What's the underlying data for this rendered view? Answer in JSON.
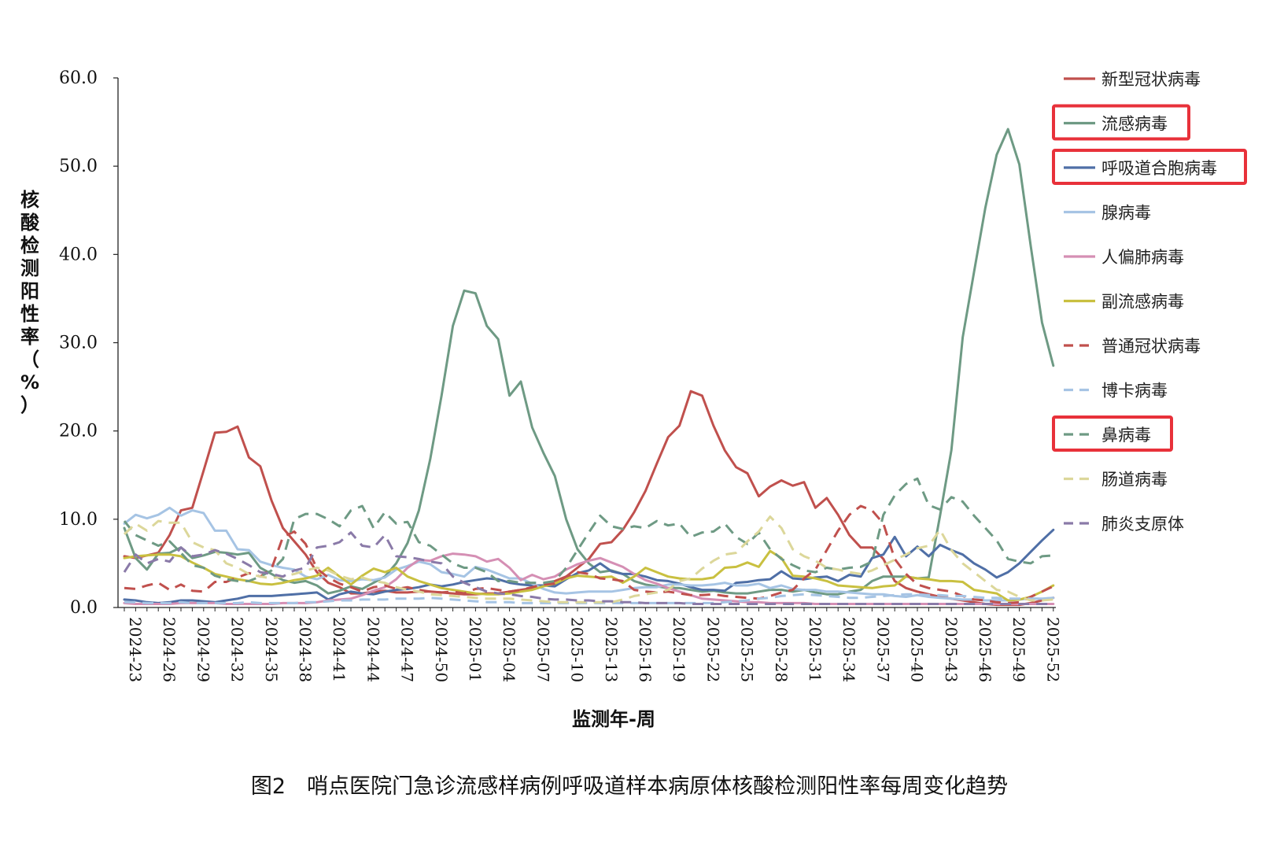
{
  "figure": {
    "caption": "图2　哨点医院门急诊流感样病例呼吸道样本病原体核酸检测阳性率每周变化趋势"
  },
  "chart_data": {
    "type": "line",
    "xlabel": "监测年-周",
    "ylabel": "核酸检测阳性率（%）",
    "ylim": [
      0,
      60
    ],
    "yticks": [
      "0.0",
      "10.0",
      "20.0",
      "30.0",
      "40.0",
      "50.0",
      "60.0"
    ],
    "grid": false,
    "legend_position": "right",
    "x_tick_labels": [
      "2024-23",
      "2024-26",
      "2024-29",
      "2024-32",
      "2024-35",
      "2024-38",
      "2024-41",
      "2024-44",
      "2024-47",
      "2024-50",
      "2025-01",
      "2025-04",
      "2025-07",
      "2025-10",
      "2025-13",
      "2025-16",
      "2025-19",
      "2025-22",
      "2025-25",
      "2025-28",
      "2025-31",
      "2025-34",
      "2025-37",
      "2025-40",
      "2025-43",
      "2025-46",
      "2025-49",
      "2025-52"
    ],
    "x": [
      "2024-23",
      "2024-24",
      "2024-25",
      "2024-26",
      "2024-27",
      "2024-28",
      "2024-29",
      "2024-30",
      "2024-31",
      "2024-32",
      "2024-33",
      "2024-34",
      "2024-35",
      "2024-36",
      "2024-37",
      "2024-38",
      "2024-39",
      "2024-40",
      "2024-41",
      "2024-42",
      "2024-43",
      "2024-44",
      "2024-45",
      "2024-46",
      "2024-47",
      "2024-48",
      "2024-49",
      "2024-50",
      "2024-51",
      "2024-52",
      "2025-01",
      "2025-02",
      "2025-03",
      "2025-04",
      "2025-05",
      "2025-06",
      "2025-07",
      "2025-08",
      "2025-09",
      "2025-10",
      "2025-11",
      "2025-12",
      "2025-13",
      "2025-14",
      "2025-15",
      "2025-16",
      "2025-17",
      "2025-18",
      "2025-19",
      "2025-20",
      "2025-21",
      "2025-22",
      "2025-23",
      "2025-24",
      "2025-25",
      "2025-26",
      "2025-27",
      "2025-28",
      "2025-29",
      "2025-30",
      "2025-31",
      "2025-32",
      "2025-33",
      "2025-34",
      "2025-35",
      "2025-36",
      "2025-37",
      "2025-38",
      "2025-39",
      "2025-40",
      "2025-41",
      "2025-42",
      "2025-43",
      "2025-44",
      "2025-45",
      "2025-46",
      "2025-47",
      "2025-48",
      "2025-49",
      "2025-50",
      "2025-51",
      "2025-52",
      "2025-53"
    ],
    "series": [
      {
        "name": "新型冠状病毒",
        "color": "#c0504d",
        "dash": "solid",
        "values": [
          5.8,
          5.6,
          5.9,
          6.2,
          8.2,
          11.0,
          11.3,
          15.5,
          19.8,
          19.9,
          20.5,
          17.0,
          16.0,
          12.1,
          9.0,
          7.5,
          6.0,
          4.0,
          2.8,
          2.3,
          1.6,
          1.6,
          1.8,
          1.9,
          1.7,
          1.7,
          1.8,
          1.8,
          1.7,
          1.6,
          1.5,
          1.5,
          1.6,
          1.6,
          1.8,
          2.0,
          2.2,
          2.5,
          3.0,
          3.5,
          4.5,
          5.5,
          7.2,
          7.4,
          8.8,
          10.8,
          13.2,
          16.3,
          19.3,
          20.6,
          24.5,
          24.0,
          20.6,
          17.8,
          15.9,
          15.2,
          12.6,
          13.7,
          14.4,
          13.8,
          14.2,
          11.3,
          12.4,
          10.5,
          8.2,
          6.8,
          6.8,
          5.5,
          3.0,
          2.2,
          1.8,
          1.5,
          1.2,
          1.0,
          0.8,
          0.6,
          0.4,
          0.3,
          0.3,
          0.3,
          0.5,
          0.8,
          1.1
        ]
      },
      {
        "name": "流感病毒",
        "color": "#6e9a84",
        "dash": "solid",
        "values": [
          9.0,
          5.6,
          4.3,
          6.1,
          6.2,
          6.8,
          5.6,
          5.9,
          6.3,
          6.2,
          6.0,
          6.2,
          4.5,
          3.8,
          3.1,
          2.8,
          3.0,
          2.5,
          1.6,
          1.9,
          2.4,
          2.1,
          2.8,
          3.5,
          5.0,
          7.3,
          11.0,
          16.8,
          24.0,
          31.9,
          35.9,
          35.6,
          31.9,
          30.4,
          24.0,
          25.6,
          20.4,
          17.5,
          14.9,
          10.0,
          6.6,
          5.0,
          4.0,
          4.2,
          3.8,
          3.0,
          2.6,
          2.4,
          2.2,
          2.2,
          2.0,
          1.8,
          1.9,
          1.7,
          1.6,
          1.6,
          1.8,
          2.0,
          2.0,
          1.8,
          2.0,
          1.7,
          1.5,
          1.5,
          1.8,
          2.0,
          3.0,
          3.5,
          3.5,
          3.5,
          3.3,
          3.4,
          10.4,
          17.8,
          30.6,
          38.0,
          45.3,
          51.3,
          54.2,
          50.2,
          41.0,
          32.3,
          27.4
        ]
      },
      {
        "name": "呼吸道合胞病毒",
        "color": "#4f6fa6",
        "dash": "solid",
        "values": [
          0.9,
          0.8,
          0.6,
          0.5,
          0.6,
          0.8,
          0.8,
          0.7,
          0.6,
          0.8,
          1.0,
          1.3,
          1.3,
          1.3,
          1.4,
          1.5,
          1.6,
          1.7,
          0.9,
          1.5,
          1.8,
          1.6,
          1.5,
          1.8,
          2.0,
          2.1,
          2.3,
          2.6,
          2.4,
          2.6,
          2.9,
          3.1,
          3.3,
          3.2,
          2.8,
          2.6,
          2.5,
          2.5,
          2.4,
          3.2,
          3.9,
          4.2,
          5.0,
          4.1,
          3.8,
          3.8,
          3.5,
          3.1,
          3.0,
          2.7,
          2.3,
          2.0,
          2.0,
          1.9,
          2.8,
          2.9,
          3.1,
          3.2,
          4.1,
          3.3,
          3.2,
          3.4,
          3.5,
          3.0,
          3.7,
          3.5,
          5.6,
          6.0,
          8.0,
          5.8,
          6.9,
          5.8,
          7.1,
          6.5,
          6.0,
          5.0,
          4.3,
          3.4,
          4.0,
          5.0,
          6.3,
          7.6,
          8.8
        ]
      },
      {
        "name": "腺病毒",
        "color": "#a6c4e4",
        "dash": "solid",
        "values": [
          9.5,
          10.5,
          10.1,
          10.5,
          11.3,
          10.4,
          11.0,
          10.7,
          8.7,
          8.7,
          6.6,
          6.5,
          5.2,
          4.8,
          4.5,
          4.3,
          3.5,
          3.2,
          3.7,
          3.1,
          3.0,
          3.2,
          3.1,
          3.4,
          4.3,
          4.7,
          5.2,
          4.9,
          4.0,
          3.8,
          3.5,
          4.6,
          4.3,
          3.8,
          3.3,
          3.3,
          2.7,
          2.1,
          1.7,
          1.6,
          1.7,
          1.8,
          1.8,
          1.8,
          2.0,
          2.2,
          2.3,
          2.3,
          2.6,
          2.6,
          2.5,
          2.5,
          2.6,
          2.8,
          2.5,
          2.5,
          2.7,
          2.2,
          2.5,
          2.1,
          2.0,
          2.0,
          1.8,
          1.8,
          1.7,
          1.6,
          1.5,
          1.5,
          1.3,
          1.2,
          1.4,
          1.2,
          1.1,
          1.0,
          0.9,
          0.9,
          0.8,
          0.8,
          0.8,
          0.9,
          1.0,
          1.0,
          1.1
        ]
      },
      {
        "name": "人偏肺病毒",
        "color": "#d58fb4",
        "dash": "solid",
        "values": [
          0.5,
          0.4,
          0.4,
          0.4,
          0.4,
          0.5,
          0.5,
          0.5,
          0.5,
          0.4,
          0.4,
          0.4,
          0.4,
          0.4,
          0.5,
          0.5,
          0.5,
          0.6,
          0.8,
          0.9,
          1.0,
          1.4,
          1.9,
          2.3,
          3.2,
          4.5,
          5.4,
          5.3,
          5.8,
          6.1,
          6.0,
          5.8,
          5.2,
          5.5,
          4.5,
          3.1,
          3.7,
          3.2,
          3.5,
          4.3,
          4.9,
          5.3,
          5.6,
          5.1,
          4.6,
          3.8,
          3.1,
          2.7,
          2.2,
          1.8,
          1.4,
          1.0,
          0.9,
          0.8,
          0.7,
          0.6,
          0.6,
          0.5,
          0.5,
          0.5,
          0.5,
          0.4,
          0.4,
          0.4,
          0.4,
          0.4,
          0.4,
          0.4,
          0.4,
          0.4,
          0.4,
          0.4,
          0.4,
          0.4,
          0.4,
          0.4,
          0.4,
          0.4,
          0.4,
          0.4,
          0.4,
          0.4,
          0.4
        ]
      },
      {
        "name": "副流感病毒",
        "color": "#c9c040",
        "dash": "solid",
        "values": [
          5.6,
          5.8,
          5.9,
          6.0,
          6.0,
          5.8,
          5.1,
          4.5,
          3.8,
          3.5,
          3.2,
          3.0,
          2.7,
          2.6,
          2.8,
          3.1,
          3.3,
          3.6,
          4.5,
          3.5,
          2.6,
          3.6,
          4.4,
          4.0,
          4.5,
          3.5,
          3.0,
          2.6,
          2.2,
          2.0,
          1.8,
          1.6,
          1.5,
          1.5,
          1.6,
          1.8,
          2.0,
          2.4,
          2.7,
          3.3,
          3.6,
          3.5,
          3.4,
          3.5,
          2.8,
          3.5,
          4.5,
          4.0,
          3.5,
          3.3,
          3.2,
          3.2,
          3.4,
          4.5,
          4.6,
          5.1,
          4.6,
          6.4,
          5.6,
          3.6,
          3.5,
          3.3,
          3.0,
          2.5,
          2.4,
          2.3,
          2.2,
          2.4,
          2.5,
          3.5,
          3.3,
          3.2,
          3.0,
          3.0,
          2.9,
          2.0,
          1.8,
          1.6,
          0.8,
          0.9,
          1.2,
          1.8,
          2.5
        ]
      },
      {
        "name": "普通冠状病毒",
        "color": "#c0504d",
        "dash": "dash",
        "values": [
          2.2,
          2.1,
          2.5,
          2.8,
          2.0,
          2.6,
          1.9,
          1.8,
          2.9,
          2.9,
          3.4,
          3.9,
          3.5,
          4.4,
          8.0,
          8.6,
          7.2,
          4.4,
          3.4,
          2.7,
          2.3,
          1.8,
          2.3,
          2.5,
          2.1,
          2.3,
          2.0,
          1.8,
          1.7,
          1.8,
          1.6,
          2.1,
          2.2,
          2.0,
          1.8,
          2.0,
          2.3,
          2.6,
          2.7,
          3.5,
          4.0,
          3.8,
          3.3,
          3.2,
          3.0,
          2.0,
          1.8,
          1.7,
          1.8,
          1.6,
          1.4,
          1.4,
          1.5,
          1.3,
          1.2,
          1.1,
          1.0,
          1.3,
          1.7,
          2.0,
          3.3,
          4.3,
          6.5,
          8.7,
          10.5,
          11.5,
          11.0,
          9.5,
          5.5,
          3.8,
          2.6,
          2.2,
          2.0,
          1.8,
          1.3,
          0.9,
          0.8,
          0.6,
          0.5,
          0.6,
          1.2,
          1.8,
          2.4
        ]
      },
      {
        "name": "博卡病毒",
        "color": "#a6c4e4",
        "dash": "dash",
        "values": [
          0.6,
          0.6,
          0.5,
          0.5,
          0.5,
          0.6,
          0.5,
          0.5,
          0.5,
          0.5,
          0.5,
          0.6,
          0.5,
          0.5,
          0.5,
          0.5,
          0.6,
          0.6,
          0.7,
          0.8,
          0.8,
          0.9,
          0.9,
          0.9,
          1.0,
          1.0,
          1.0,
          1.1,
          1.0,
          0.9,
          0.8,
          0.7,
          0.6,
          0.6,
          0.6,
          0.5,
          0.5,
          0.5,
          0.5,
          0.5,
          0.5,
          0.5,
          0.5,
          0.5,
          0.5,
          0.5,
          0.5,
          0.5,
          0.5,
          0.5,
          0.5,
          0.5,
          0.5,
          0.6,
          0.7,
          0.8,
          1.0,
          1.1,
          1.3,
          1.4,
          1.5,
          1.4,
          1.3,
          1.2,
          1.1,
          1.1,
          1.2,
          1.3,
          1.4,
          1.5,
          1.5,
          1.4,
          1.4,
          1.3,
          1.3,
          1.2,
          1.1,
          1.1,
          1.0,
          1.0,
          1.0,
          1.0,
          1.1
        ]
      },
      {
        "name": "鼻病毒",
        "color": "#6e9a84",
        "dash": "dash",
        "values": [
          9.8,
          8.2,
          7.6,
          7.0,
          7.5,
          6.2,
          4.8,
          4.5,
          3.6,
          3.2,
          3.0,
          3.0,
          3.5,
          4.2,
          5.5,
          10.0,
          10.6,
          10.6,
          10.0,
          9.2,
          11.0,
          11.5,
          9.0,
          10.8,
          9.5,
          9.7,
          7.4,
          7.0,
          6.0,
          5.0,
          4.5,
          4.5,
          4.0,
          3.0,
          3.0,
          2.8,
          2.8,
          2.8,
          3.0,
          4.5,
          6.5,
          8.5,
          10.4,
          9.2,
          8.9,
          9.2,
          9.0,
          9.8,
          9.3,
          9.5,
          8.0,
          8.5,
          8.6,
          9.5,
          8.0,
          7.2,
          8.5,
          6.6,
          5.5,
          4.8,
          4.2,
          4.0,
          4.5,
          4.3,
          4.5,
          4.6,
          5.2,
          10.5,
          12.7,
          14.0,
          14.6,
          11.6,
          11.1,
          12.5,
          12.0,
          10.4,
          9.0,
          7.6,
          5.5,
          5.2,
          5.0,
          5.8,
          5.9
        ]
      },
      {
        "name": "肠道病毒",
        "color": "#dcd79a",
        "dash": "dash",
        "values": [
          8.3,
          9.5,
          8.7,
          9.8,
          9.6,
          9.6,
          7.4,
          6.8,
          6.5,
          5.0,
          4.5,
          3.8,
          3.5,
          3.3,
          3.5,
          3.8,
          4.2,
          4.5,
          4.2,
          3.6,
          3.2,
          3.4,
          3.0,
          2.8,
          2.3,
          2.0,
          1.8,
          1.5,
          1.4,
          1.3,
          1.2,
          1.1,
          1.0,
          1.0,
          1.0,
          0.9,
          0.8,
          0.7,
          0.6,
          0.6,
          0.6,
          0.6,
          0.6,
          0.6,
          0.9,
          1.3,
          1.5,
          1.7,
          2.0,
          3.0,
          3.3,
          4.4,
          5.3,
          6.0,
          6.2,
          7.5,
          8.6,
          10.3,
          9.0,
          6.6,
          5.8,
          5.3,
          4.5,
          4.3,
          4.0,
          3.8,
          4.2,
          4.8,
          5.4,
          6.0,
          6.7,
          7.0,
          8.8,
          6.5,
          5.0,
          4.0,
          3.0,
          2.0,
          1.8,
          1.2,
          0.8,
          0.8,
          0.9
        ]
      },
      {
        "name": "肺炎支原体",
        "color": "#8a7aa8",
        "dash": "dash",
        "values": [
          4.0,
          6.0,
          5.0,
          5.5,
          5.2,
          6.8,
          5.8,
          6.0,
          6.5,
          6.1,
          5.5,
          4.8,
          4.0,
          3.8,
          3.5,
          4.2,
          4.5,
          6.8,
          7.0,
          7.4,
          8.5,
          7.0,
          6.8,
          8.2,
          5.8,
          5.7,
          5.5,
          5.2,
          5.0,
          3.5,
          2.8,
          2.3,
          1.8,
          1.6,
          1.5,
          1.3,
          1.2,
          1.0,
          0.9,
          0.9,
          0.8,
          0.8,
          0.7,
          0.7,
          0.6,
          0.6,
          0.5,
          0.5,
          0.5,
          0.5,
          0.4,
          0.4,
          0.4,
          0.4,
          0.4,
          0.4,
          0.4,
          0.4,
          0.4,
          0.4,
          0.4,
          0.4,
          0.4,
          0.4,
          0.4,
          0.4,
          0.4,
          0.4,
          0.4,
          0.4,
          0.4,
          0.4,
          0.4,
          0.4,
          0.4,
          0.4,
          0.4,
          0.4,
          0.4,
          0.4,
          0.4,
          0.4,
          0.4
        ]
      }
    ],
    "highlighted_legend_entries": [
      "流感病毒",
      "呼吸道合胞病毒",
      "鼻病毒"
    ],
    "highlight_color": "#e8313a"
  }
}
